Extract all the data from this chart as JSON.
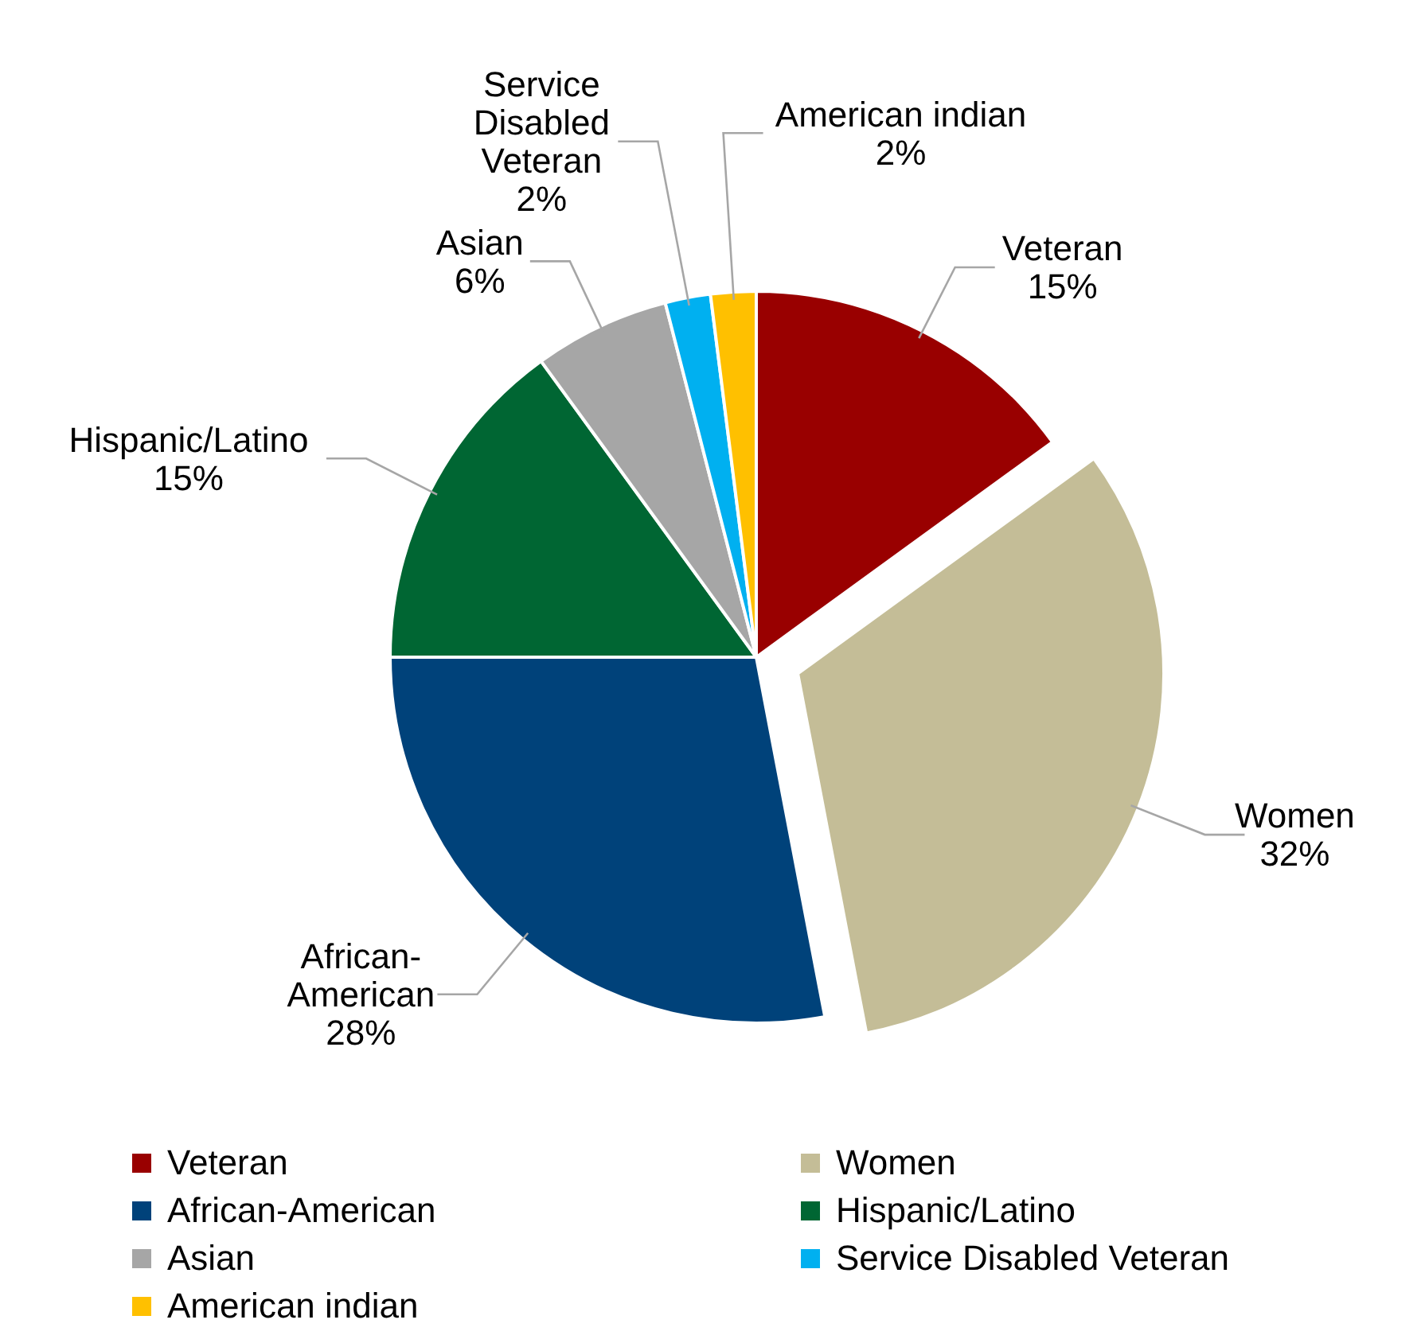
{
  "chart_data": {
    "type": "pie",
    "categories": [
      "Veteran",
      "Women",
      "African-American",
      "Hispanic/Latino",
      "Asian",
      "Service Disabled Veteran",
      "American indian"
    ],
    "values": [
      15,
      32,
      28,
      15,
      6,
      2,
      2
    ],
    "value_labels": [
      "15%",
      "32%",
      "28%",
      "15%",
      "6%",
      "2%",
      "2%"
    ],
    "colors": [
      "#990000",
      "#c4bd97",
      "#00427a",
      "#006633",
      "#a6a6a6",
      "#00b0f0",
      "#ffc000"
    ],
    "legend": "bottom"
  }
}
